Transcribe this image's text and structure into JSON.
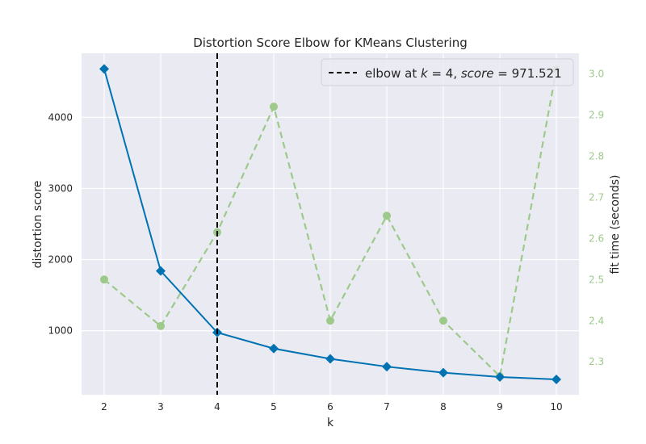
{
  "chart_data": {
    "type": "line",
    "title": "Distortion Score Elbow for KMeans Clustering",
    "xlabel": "k",
    "ylabel": "distortion score",
    "y2label": "fit time (seconds)",
    "x": [
      2,
      3,
      4,
      5,
      6,
      7,
      8,
      9,
      10
    ],
    "xlim": [
      1.6,
      10.4
    ],
    "ylim": [
      100,
      4900
    ],
    "y2lim": [
      2.22,
      3.05
    ],
    "xticks": [
      2,
      3,
      4,
      5,
      6,
      7,
      8,
      9,
      10
    ],
    "yticks": [
      1000,
      2000,
      3000,
      4000
    ],
    "y2ticks": [
      2.3,
      2.4,
      2.5,
      2.6,
      2.7,
      2.8,
      2.9,
      3.0
    ],
    "y2tick_labels": [
      "2.3",
      "2.4",
      "2.5",
      "2.6",
      "2.7",
      "2.8",
      "2.9",
      "3.0"
    ],
    "series": [
      {
        "name": "distortion score",
        "axis": "left",
        "color": "#0072b2",
        "marker": "diamond",
        "values": [
          4680,
          1840,
          975,
          750,
          605,
          495,
          410,
          350,
          315
        ]
      },
      {
        "name": "fit time",
        "axis": "right",
        "color": "#9dc98a",
        "marker": "circle",
        "dashed": true,
        "values": [
          2.5,
          2.387,
          2.615,
          2.92,
          2.4,
          2.655,
          2.4,
          2.265,
          3.01
        ]
      }
    ],
    "elbow": {
      "k": 4,
      "legend_prefix": "elbow at ",
      "legend_k": "k",
      "legend_eq1": " = 4, ",
      "legend_score": "score",
      "legend_eq2": " = 971.521"
    },
    "grid": true,
    "legend_position": "top-right",
    "colors": {
      "plot_bg": "#eaeaf2",
      "grid": "#ffffff",
      "right_axis": "#9dc98a",
      "elbow_line": "#000000"
    }
  }
}
